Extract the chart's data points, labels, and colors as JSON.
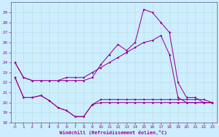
{
  "xlabel": "Windchill (Refroidissement éolien,°C)",
  "xlim": [
    -0.5,
    23.5
  ],
  "ylim": [
    18,
    30
  ],
  "yticks": [
    18,
    19,
    20,
    21,
    22,
    23,
    24,
    25,
    26,
    27,
    28,
    29
  ],
  "xticks": [
    0,
    1,
    2,
    3,
    4,
    5,
    6,
    7,
    8,
    9,
    10,
    11,
    12,
    13,
    14,
    15,
    16,
    17,
    18,
    19,
    20,
    21,
    22,
    23
  ],
  "bg_color": "#cceeff",
  "grid_color": "#bbdddd",
  "line_color": "#990099",
  "series": [
    {
      "x": [
        0,
        1,
        2,
        3,
        4,
        5,
        6,
        7,
        8,
        9,
        10,
        11,
        12,
        13,
        14,
        15,
        16,
        17,
        18,
        19,
        20,
        21,
        22,
        23
      ],
      "y": [
        24,
        22.5,
        22.2,
        22.2,
        22.2,
        22.2,
        22.2,
        22.2,
        22.2,
        22.5,
        23.8,
        24.8,
        25.8,
        25.2,
        26.0,
        29.3,
        29.0,
        28.0,
        27.0,
        22.0,
        20.5,
        20.5,
        20.0,
        20.0
      ]
    },
    {
      "x": [
        0,
        1,
        2,
        3,
        4,
        5,
        6,
        7,
        8,
        9,
        10,
        11,
        12,
        13,
        14,
        15,
        16,
        17,
        18,
        19,
        20,
        21,
        22,
        23
      ],
      "y": [
        24,
        22.5,
        22.2,
        22.2,
        22.2,
        22.2,
        22.5,
        22.5,
        22.5,
        23.0,
        23.5,
        24.0,
        24.5,
        25.0,
        25.5,
        26.0,
        26.2,
        26.7,
        24.8,
        20.5,
        20.0,
        20.0,
        20.0,
        20.0
      ]
    },
    {
      "x": [
        0,
        1,
        2,
        3,
        4,
        5,
        6,
        7,
        8,
        9,
        10,
        11,
        12,
        13,
        14,
        15,
        16,
        17,
        18,
        19,
        20,
        21,
        22,
        23
      ],
      "y": [
        22.5,
        20.5,
        20.5,
        20.7,
        20.2,
        19.5,
        19.2,
        18.6,
        18.6,
        19.8,
        20.0,
        20.0,
        20.0,
        20.0,
        20.0,
        20.0,
        20.0,
        20.0,
        20.0,
        20.0,
        20.0,
        20.0,
        20.0,
        20.0
      ]
    },
    {
      "x": [
        0,
        1,
        2,
        3,
        4,
        5,
        6,
        7,
        8,
        9,
        10,
        11,
        12,
        13,
        14,
        15,
        16,
        17,
        18,
        19,
        20,
        21,
        22,
        23
      ],
      "y": [
        22.5,
        20.5,
        20.5,
        20.7,
        20.2,
        19.5,
        19.2,
        18.6,
        18.6,
        19.8,
        20.3,
        20.3,
        20.3,
        20.3,
        20.3,
        20.3,
        20.3,
        20.3,
        20.3,
        20.3,
        20.3,
        20.3,
        20.3,
        20.0
      ]
    }
  ]
}
